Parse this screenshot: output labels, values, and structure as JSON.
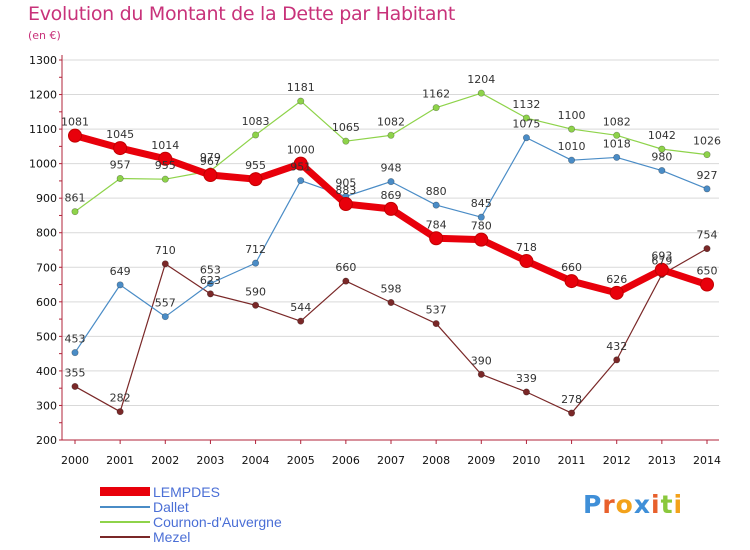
{
  "header": {
    "title": "Evolution du Montant de la Dette par Habitant",
    "subtitle": "(en €)"
  },
  "colors": {
    "title": "#c8327a",
    "axis": "#b0233a",
    "legend_text": "#4b6fd6"
  },
  "chart_data": {
    "type": "line",
    "title": "Evolution du Montant de la Dette par Habitant",
    "subtitle": "(en €)",
    "xlabel": "",
    "ylabel": "",
    "ylim": [
      200,
      1300
    ],
    "yticks": [
      "200",
      "300",
      "400",
      "500",
      "600",
      "700",
      "800",
      "900",
      "1000",
      "1100",
      "1200",
      "1300"
    ],
    "categories": [
      "2000",
      "2001",
      "2002",
      "2003",
      "2004",
      "2005",
      "2006",
      "2007",
      "2008",
      "2009",
      "2010",
      "2011",
      "2012",
      "2013",
      "2014"
    ],
    "grid": "horizontal",
    "legend_position": "bottom-left",
    "series": [
      {
        "name": "LEMPDES",
        "color": "#e8000b",
        "values": [
          1081,
          1045,
          1014,
          967,
          955,
          1000,
          883,
          869,
          784,
          780,
          718,
          660,
          626,
          693,
          650
        ],
        "labels": [
          "1081",
          "1045",
          "1014",
          "967",
          "955",
          "1000",
          "883",
          "869",
          "784",
          "780",
          "718",
          "660",
          "626",
          "693",
          "650"
        ]
      },
      {
        "name": "Dallet",
        "color": "#4a8cc6",
        "values": [
          453,
          649,
          557,
          653,
          712,
          951,
          905,
          948,
          880,
          845,
          1075,
          1010,
          1018,
          980,
          927
        ],
        "labels": [
          "453",
          "649",
          "557",
          "653",
          "712",
          "951",
          "905",
          "948",
          "880",
          "845",
          "1075",
          "1010",
          "1018",
          "980",
          "927"
        ]
      },
      {
        "name": "Cournon-d'Auvergne",
        "color": "#8ed34a",
        "values": [
          861,
          957,
          955,
          979,
          1083,
          1181,
          1065,
          1082,
          1162,
          1204,
          1132,
          1100,
          1082,
          1042,
          1026
        ],
        "labels": [
          "861",
          "957",
          "955",
          "979",
          "1083",
          "1181",
          "1065",
          "1082",
          "1162",
          "1204",
          "1132",
          "1100",
          "1082",
          "1042",
          "1026"
        ]
      },
      {
        "name": "Mezel",
        "color": "#7a2828",
        "values": [
          355,
          282,
          710,
          623,
          590,
          544,
          660,
          598,
          537,
          390,
          339,
          278,
          432,
          679,
          754
        ],
        "labels": [
          "355",
          "282",
          "710",
          "623",
          "590",
          "544",
          "660",
          "598",
          "537",
          "390",
          "339",
          "278",
          "432",
          "679",
          "754"
        ]
      }
    ]
  },
  "legend": {
    "items": [
      {
        "label": "LEMPDES",
        "color": "#e8000b"
      },
      {
        "label": "Dallet",
        "color": "#4a8cc6"
      },
      {
        "label": "Cournon-d'Auvergne",
        "color": "#8ed34a"
      },
      {
        "label": "Mezel",
        "color": "#7a2828"
      }
    ]
  },
  "brand": {
    "letters": [
      "P",
      "r",
      "o",
      "x",
      "i",
      "t",
      "i"
    ],
    "colors": [
      "#3f8fd8",
      "#e8602c",
      "#f3a21a",
      "#3f8fd8",
      "#e8602c",
      "#8ac83c",
      "#f3a21a"
    ]
  }
}
